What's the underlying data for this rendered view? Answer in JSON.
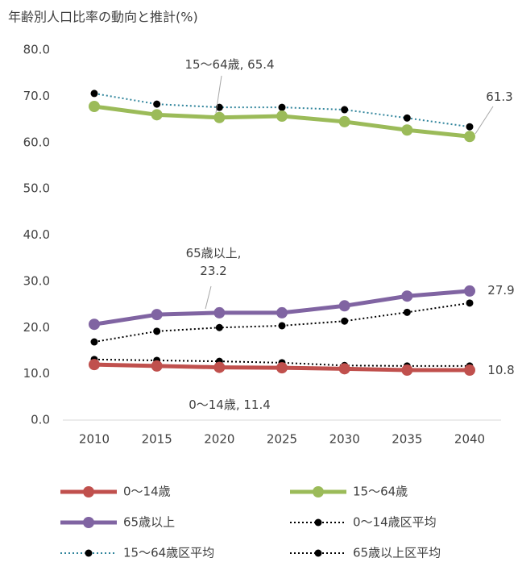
{
  "chart_data": {
    "type": "line",
    "title": "年齢別人口比率の動向と推計(%)",
    "categories": [
      "2010",
      "2015",
      "2020",
      "2025",
      "2030",
      "2035",
      "2040"
    ],
    "ylim": [
      0,
      80
    ],
    "yticks": [
      {
        "value": 0,
        "label": "0.0"
      },
      {
        "value": 10,
        "label": "10.0"
      },
      {
        "value": 20,
        "label": "20.0"
      },
      {
        "value": 30,
        "label": "30.0"
      },
      {
        "value": 40,
        "label": "40.0"
      },
      {
        "value": 50,
        "label": "50.0"
      },
      {
        "value": 60,
        "label": "60.0"
      },
      {
        "value": 70,
        "label": "70.0"
      },
      {
        "value": 80,
        "label": "80.0"
      }
    ],
    "series": [
      {
        "name": "0〜14歳",
        "color": "#c0504d",
        "style": "solid",
        "values": [
          12.0,
          11.7,
          11.4,
          11.3,
          11.1,
          10.8,
          10.8
        ],
        "value_labels": [
          null,
          null,
          "0〜14歳, 11.4",
          null,
          null,
          null,
          "10.8"
        ]
      },
      {
        "name": "15〜64歳",
        "color": "#9bbb59",
        "style": "solid",
        "values": [
          67.8,
          66.0,
          65.4,
          65.7,
          64.5,
          62.7,
          61.3
        ],
        "value_labels": [
          null,
          null,
          "15〜64歳, 65.4",
          null,
          null,
          null,
          "61.3"
        ]
      },
      {
        "name": "65歳以上",
        "color": "#8064a2",
        "style": "solid",
        "values": [
          20.7,
          22.8,
          23.2,
          23.2,
          24.7,
          26.8,
          27.9
        ],
        "value_labels": [
          null,
          null,
          "65歳以上, 23.2",
          null,
          null,
          null,
          "27.9"
        ]
      },
      {
        "name": "0〜14歳区平均",
        "color": "#000000",
        "style": "dotted",
        "values": [
          13.1,
          12.9,
          12.7,
          12.4,
          11.8,
          11.7,
          11.7
        ]
      },
      {
        "name": "15〜64歳区平均",
        "color": "#31859c",
        "style": "dotted",
        "values": [
          70.6,
          68.3,
          67.6,
          67.6,
          67.1,
          65.3,
          63.4
        ]
      },
      {
        "name": "65歳以上区平均",
        "color": "#000000",
        "style": "dotted",
        "values": [
          16.9,
          19.2,
          20.0,
          20.4,
          21.4,
          23.3,
          25.3
        ]
      }
    ]
  }
}
